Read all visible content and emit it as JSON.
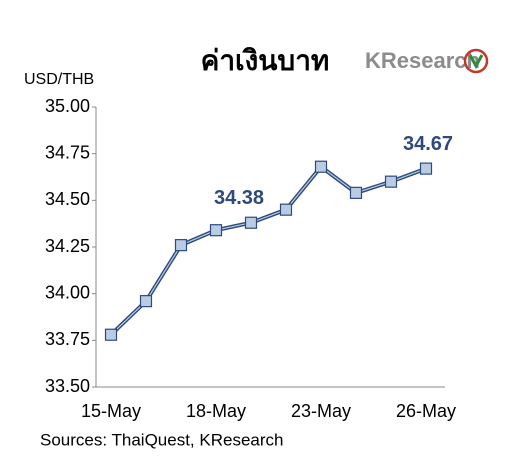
{
  "chart_data": {
    "type": "line",
    "title": "ค่าเงินบาท",
    "logo": "KResearch",
    "y_label": "USD/THB",
    "source": "Sources: ThaiQuest, KResearch",
    "categories": [
      "15-May",
      null,
      null,
      "18-May",
      null,
      null,
      "23-May",
      null,
      null,
      "26-May"
    ],
    "values": [
      33.78,
      33.96,
      34.26,
      34.34,
      34.38,
      34.45,
      34.68,
      34.54,
      34.6,
      34.67
    ],
    "value_labels": [
      null,
      null,
      null,
      null,
      "34.38",
      null,
      null,
      null,
      null,
      "34.67"
    ],
    "color": "#2e4a7d",
    "marker_color": "#b8cce4",
    "ylim": [
      33.5,
      35.0
    ],
    "yticks": [
      {
        "value": 33.5,
        "label": "33.50"
      },
      {
        "value": 33.75,
        "label": "33.75"
      },
      {
        "value": 34.0,
        "label": "34.00"
      },
      {
        "value": 34.25,
        "label": "34.25"
      },
      {
        "value": 34.5,
        "label": "34.50"
      },
      {
        "value": 34.75,
        "label": "34.75"
      },
      {
        "value": 35.0,
        "label": "35.00"
      }
    ],
    "grid": false
  }
}
